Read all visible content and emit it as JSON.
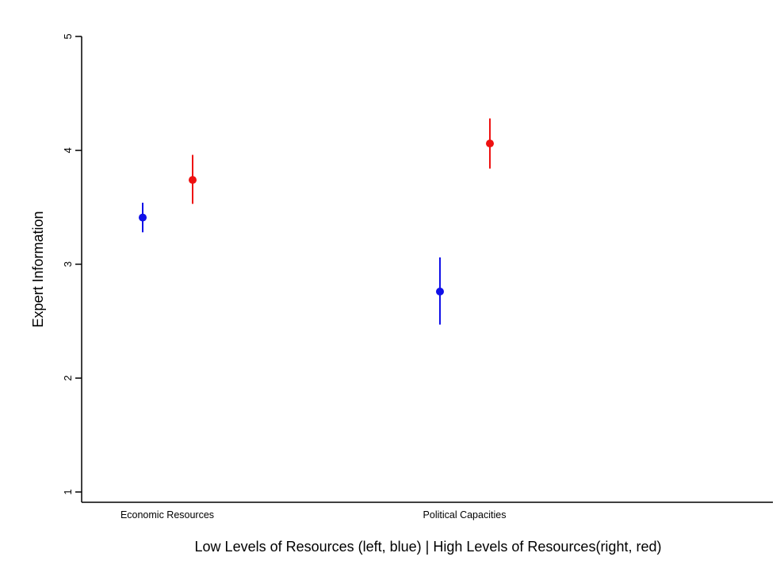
{
  "chart_data": {
    "type": "scatter",
    "ylabel": "Expert Information",
    "xlabel": "Low Levels of Resources (left, blue) | High Levels of Resources(right, red)",
    "ylim": [
      1,
      5
    ],
    "yticks": [
      "1",
      "2",
      "3",
      "4",
      "5"
    ],
    "categories": [
      "Economic Resources",
      "Political Capacities"
    ],
    "series": [
      {
        "color": "#1010e8",
        "values": [
          3.41,
          2.76
        ],
        "ci_low": [
          3.28,
          2.47
        ],
        "ci_high": [
          3.54,
          3.06
        ]
      },
      {
        "color": "#ee1111",
        "values": [
          3.74,
          4.06
        ],
        "ci_low": [
          3.53,
          3.84
        ],
        "ci_high": [
          3.96,
          4.28
        ]
      }
    ],
    "grid": false,
    "legend": "none"
  }
}
